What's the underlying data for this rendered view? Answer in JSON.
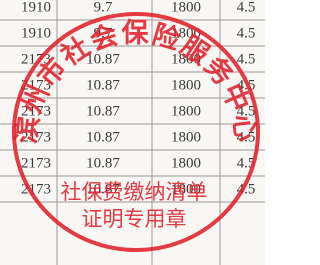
{
  "table": {
    "rows": [
      [
        "1910",
        "9.7",
        "1800",
        "4.5"
      ],
      [
        "1910",
        "9.7",
        "1800",
        "4.5"
      ],
      [
        "2173",
        "10.87",
        "1800",
        "4.5"
      ],
      [
        "2173",
        "10.87",
        "1800",
        "4.5"
      ],
      [
        "2173",
        "10.87",
        "1800",
        "4.5"
      ],
      [
        "2173",
        "10.87",
        "1800",
        "4.5"
      ],
      [
        "2173",
        "10.87",
        "1800",
        "4.5"
      ],
      [
        "2173",
        "10.87",
        "1800",
        "4.5"
      ]
    ]
  },
  "stamp": {
    "arc_text": "滨州市社会保险服务中心",
    "line1": "社保费缴纳清单",
    "line2": "证明专用章"
  }
}
